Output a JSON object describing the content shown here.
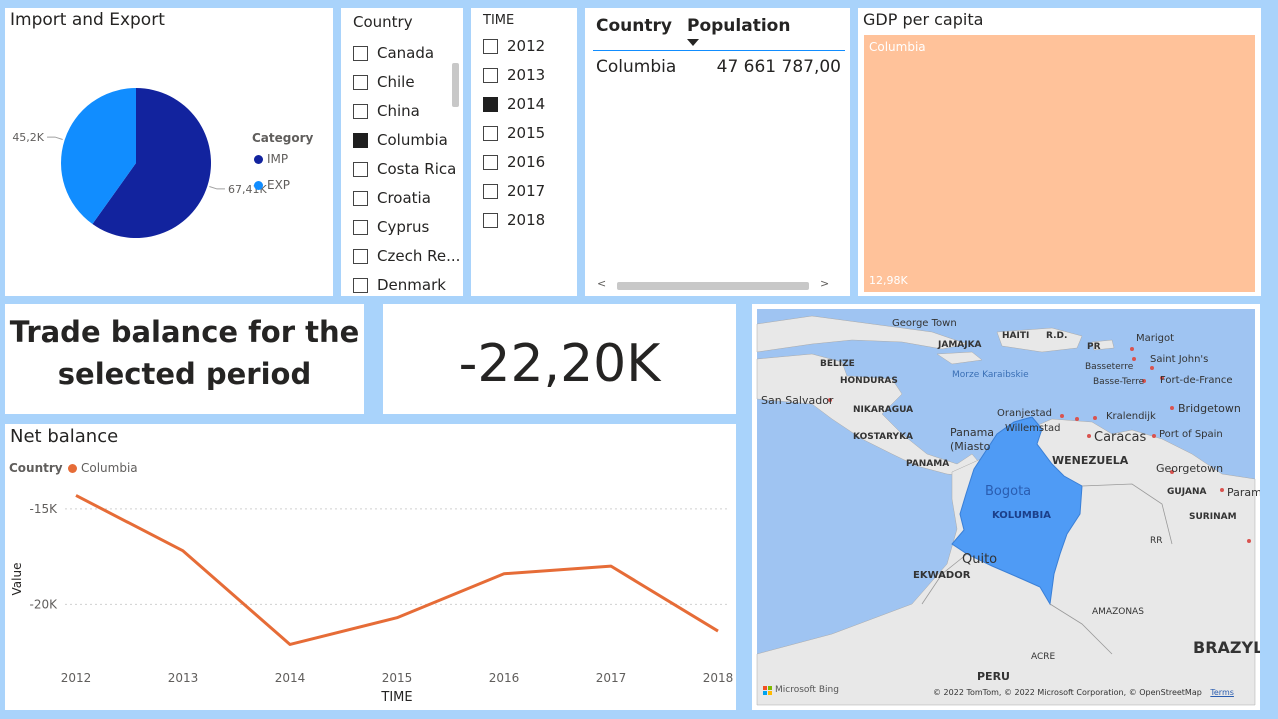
{
  "pie": {
    "title": "Import and Export",
    "legend_title": "Category",
    "colors": {
      "IMP": "#12239e",
      "EXP": "#118dff"
    }
  },
  "country_slicer": {
    "header": "Country",
    "items": [
      {
        "label": "Canada",
        "checked": false
      },
      {
        "label": "Chile",
        "checked": false
      },
      {
        "label": "China",
        "checked": false
      },
      {
        "label": "Columbia",
        "checked": true
      },
      {
        "label": "Costa Rica",
        "checked": false
      },
      {
        "label": "Croatia",
        "checked": false
      },
      {
        "label": "Cyprus",
        "checked": false
      },
      {
        "label": "Czech Re...",
        "checked": false
      },
      {
        "label": "Denmark",
        "checked": false
      }
    ]
  },
  "time_slicer": {
    "header": "TIME",
    "items": [
      {
        "label": "2012",
        "checked": false
      },
      {
        "label": "2013",
        "checked": false
      },
      {
        "label": "2014",
        "checked": true
      },
      {
        "label": "2015",
        "checked": false
      },
      {
        "label": "2016",
        "checked": false
      },
      {
        "label": "2017",
        "checked": false
      },
      {
        "label": "2018",
        "checked": false
      }
    ]
  },
  "table": {
    "col1": "Country",
    "col2": "Population",
    "rows": [
      {
        "country": "Columbia",
        "population": "47 661 787,00"
      }
    ],
    "scroll_left": "<",
    "scroll_right": ">"
  },
  "treemap": {
    "title": "GDP per capita",
    "tile_label": "Columbia",
    "tile_value": "12,98K",
    "color": "#ffc29a"
  },
  "trade_card": {
    "line1": "Trade balance for the",
    "line2": "selected period"
  },
  "kpi": {
    "value": "-22,20K"
  },
  "line": {
    "title": "Net balance",
    "legend_title": "Country",
    "color": "#e66c37"
  },
  "map": {
    "labels": {
      "george_town": "George Town",
      "haiti": "HAITI",
      "rd": "R.D.",
      "pr": "PR",
      "marigot": "Marigot",
      "jamajka": "JAMAJKA",
      "saint_johns": "Saint John's",
      "basseterre": "Basseterre",
      "basse_terre": "Basse-Terre",
      "fort_de_france": "Fort-de-France",
      "belize": "BELIZE",
      "honduras": "HONDURAS",
      "morze": "Morze Karaibskie",
      "bridgetown": "Bridgetown",
      "san_salvador": "San Salvador",
      "nikaragua": "NIKARAGUA",
      "oranjestad": "Oranjestad",
      "kralendijk": "Kralendijk",
      "willemstad": "Willemstad",
      "kostaryka": "KOSTARYKA",
      "panama_city": "Panama",
      "miasto": "(Miasto",
      "caracas": "Caracas",
      "port_of_spain": "Port of Spain",
      "panama": "PANAMA",
      "wenezuela": "WENEZUELA",
      "georgetown": "Georgetown",
      "gujana": "GUJANA",
      "param": "Param",
      "bogota": "Bogota",
      "kolumbia": "KOLUMBIA",
      "surinam": "SURINAM",
      "rr": "RR",
      "quito": "Quito",
      "ekwador": "EKWADOR",
      "amazonas": "AMAZONAS",
      "acre": "ACRE",
      "brazyl": "BRAZYL",
      "peru": "PERU"
    },
    "bing": "Microsoft Bing",
    "copyright": "© 2022 TomTom, © 2022 Microsoft Corporation, © OpenStreetMap",
    "terms": "Terms",
    "highlight_color": "#4f9bf5"
  },
  "chart_data": [
    {
      "type": "pie",
      "title": "Import and Export",
      "legend_title": "Category",
      "categories": [
        "IMP",
        "EXP"
      ],
      "values": [
        67.41,
        45.2
      ],
      "value_labels": [
        "67,41K",
        "45,2K"
      ],
      "legend_position": "right"
    },
    {
      "type": "line",
      "title": "Net balance",
      "xlabel": "TIME",
      "ylabel": "Value",
      "x": [
        "2012",
        "2013",
        "2014",
        "2015",
        "2016",
        "2017",
        "2018"
      ],
      "series": [
        {
          "name": "Columbia",
          "values": [
            -14.3,
            -17.2,
            -22.1,
            -20.7,
            -18.4,
            -18.0,
            -21.4
          ]
        }
      ],
      "yticks": [
        -15,
        -20
      ],
      "ytick_labels": [
        "-15K",
        "-20K"
      ],
      "ylim": [
        -22.6,
        -13.7
      ],
      "legend_position": "top-left",
      "grid": true
    }
  ]
}
